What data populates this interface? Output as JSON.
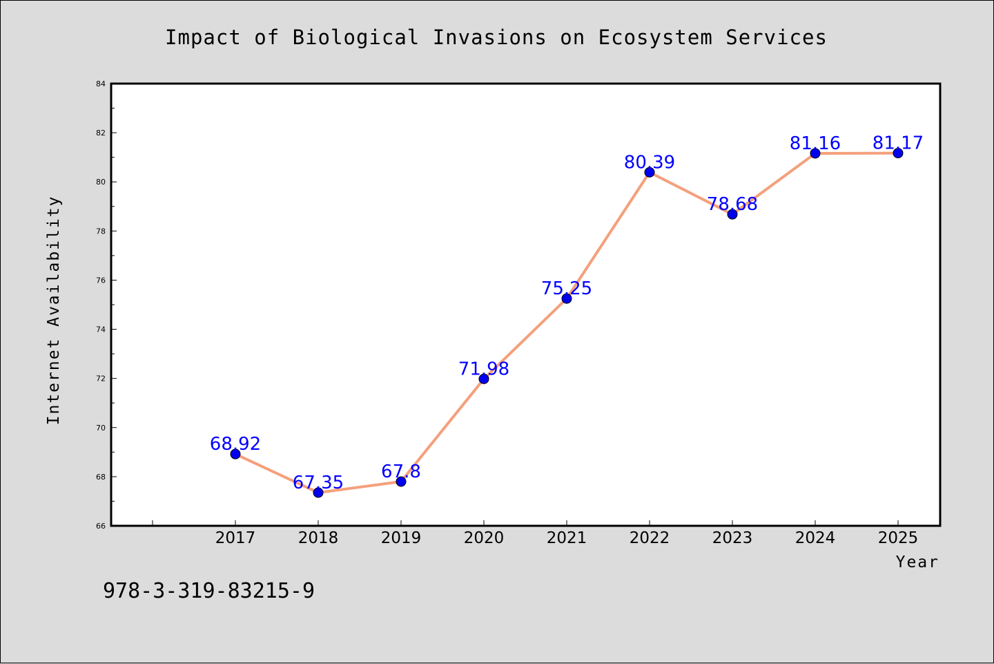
{
  "colors": {
    "background": "#dcdcdc",
    "plot_background": "#ffffff",
    "line": "#f4a07c",
    "marker": "#0000ee",
    "data_label": "#0000ff"
  },
  "isbn": "978-3-319-83215-9",
  "chart_data": {
    "type": "line",
    "title": "Impact of Biological Invasions on Ecosystem Services",
    "xlabel": "Year",
    "ylabel": "Internet Availability",
    "x": [
      "2017",
      "2018",
      "2019",
      "2020",
      "2021",
      "2022",
      "2023",
      "2024",
      "2025"
    ],
    "values": [
      68.92,
      67.35,
      67.8,
      71.98,
      75.25,
      80.39,
      78.68,
      81.16,
      81.17
    ],
    "data_labels": [
      "68.92",
      "67.35",
      "67.8",
      "71.98",
      "75.25",
      "80.39",
      "78.68",
      "81.16",
      "81.17"
    ],
    "ylim": [
      66,
      84
    ],
    "yticks": [
      "66",
      "68",
      "70",
      "72",
      "74",
      "76",
      "78",
      "80",
      "82",
      "84"
    ],
    "grid": false,
    "legend": "none"
  }
}
